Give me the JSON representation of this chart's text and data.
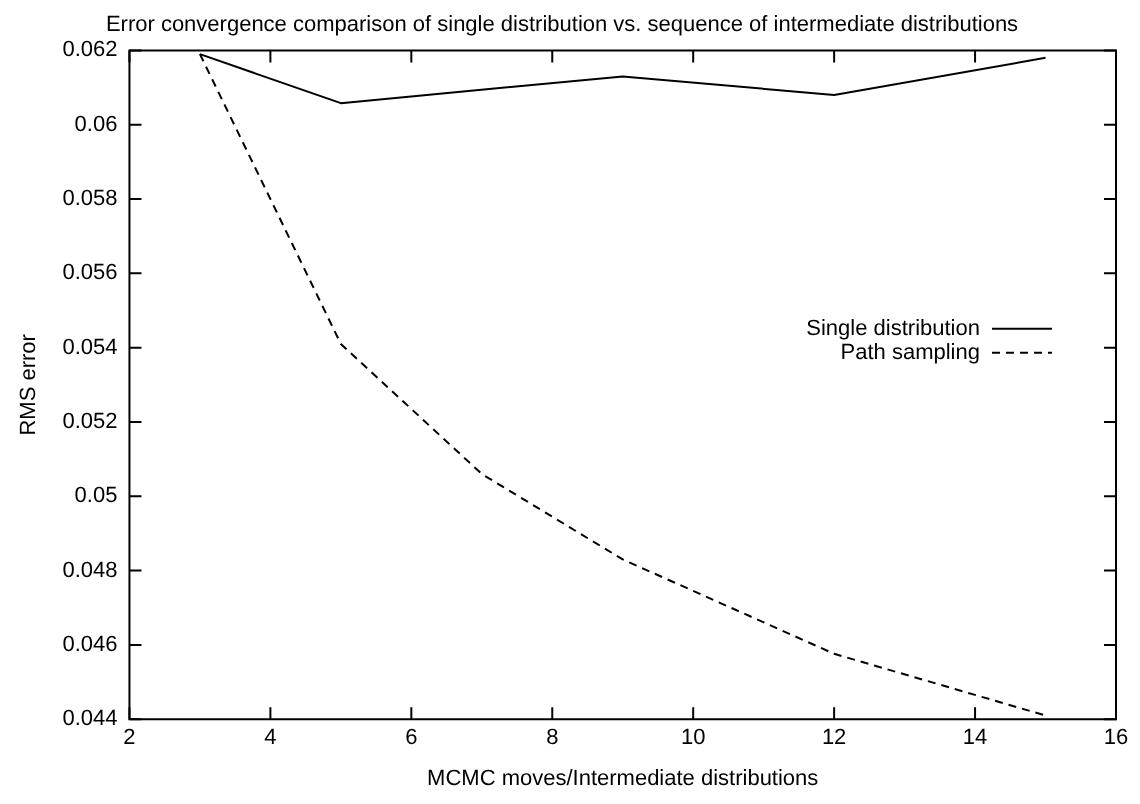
{
  "chart_data": {
    "type": "line",
    "title": "Error convergence comparison of single distribution vs. sequence of intermediate distributions",
    "xlabel": "MCMC moves/Intermediate distributions",
    "ylabel": "RMS error",
    "x": [
      3,
      5,
      9,
      12,
      15
    ],
    "series": [
      {
        "name": "Single distribution",
        "color": "#000000",
        "line_style": "solid",
        "values": [
          0.0619,
          0.06058,
          0.0613,
          0.0608,
          0.0618
        ]
      },
      {
        "name": "Path sampling",
        "color": "#000000",
        "line_style": "dashed",
        "x": [
          3,
          5,
          7,
          9,
          12,
          15
        ],
        "values": [
          0.0619,
          0.0541,
          0.0506,
          0.0483,
          0.04576,
          0.0441
        ]
      }
    ],
    "xlim": [
      2,
      16
    ],
    "xticks": [
      2,
      4,
      6,
      8,
      10,
      12,
      14,
      16
    ],
    "ylim": [
      0.044,
      0.062
    ],
    "yticks": [
      0.044,
      0.046,
      0.048,
      0.05,
      0.052,
      0.054,
      0.056,
      0.058,
      0.06,
      0.062
    ],
    "grid": false,
    "legend": "right",
    "marker": "none"
  }
}
